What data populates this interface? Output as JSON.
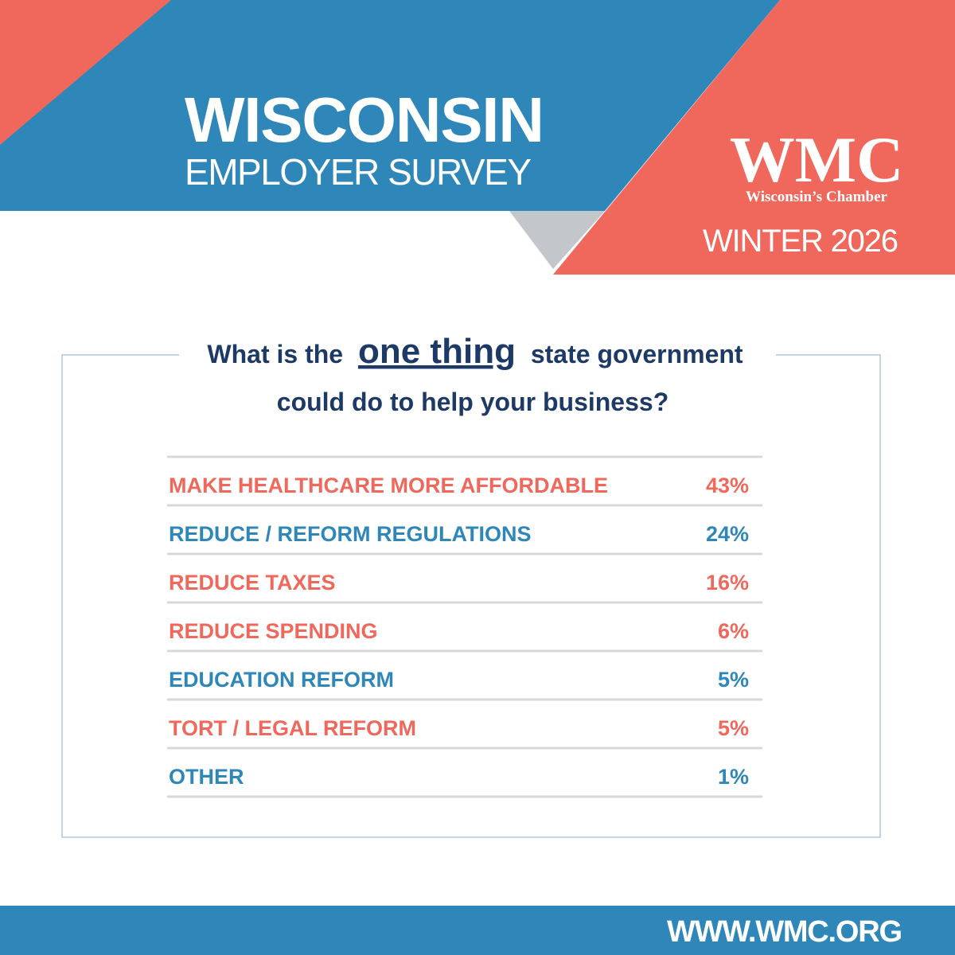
{
  "header": {
    "title": "WISCONSIN",
    "subtitle": "EMPLOYER SURVEY",
    "brand": "WMC",
    "brand_tagline": "Wisconsin’s Chamber",
    "season": "WINTER 2026"
  },
  "question": {
    "before": "What is the",
    "emphasis": "one thing",
    "after": "state government",
    "line2": "could do to help your business?"
  },
  "table": {
    "rows": [
      {
        "label": "MAKE HEALTHCARE MORE AFFORDABLE",
        "value": "43%",
        "color": "#f0685c"
      },
      {
        "label": "REDUCE / REFORM REGULATIONS",
        "value": "24%",
        "color": "#2f86b8"
      },
      {
        "label": "REDUCE TAXES",
        "value": "16%",
        "color": "#f0685c"
      },
      {
        "label": "REDUCE SPENDING",
        "value": "6%",
        "color": "#f0685c"
      },
      {
        "label": "EDUCATION REFORM",
        "value": "5%",
        "color": "#2f86b8"
      },
      {
        "label": "TORT / LEGAL REFORM",
        "value": "5%",
        "color": "#f0685c"
      },
      {
        "label": "OTHER",
        "value": "1%",
        "color": "#2f86b8"
      }
    ]
  },
  "footer": {
    "url": "WWW.WMC.ORG"
  }
}
